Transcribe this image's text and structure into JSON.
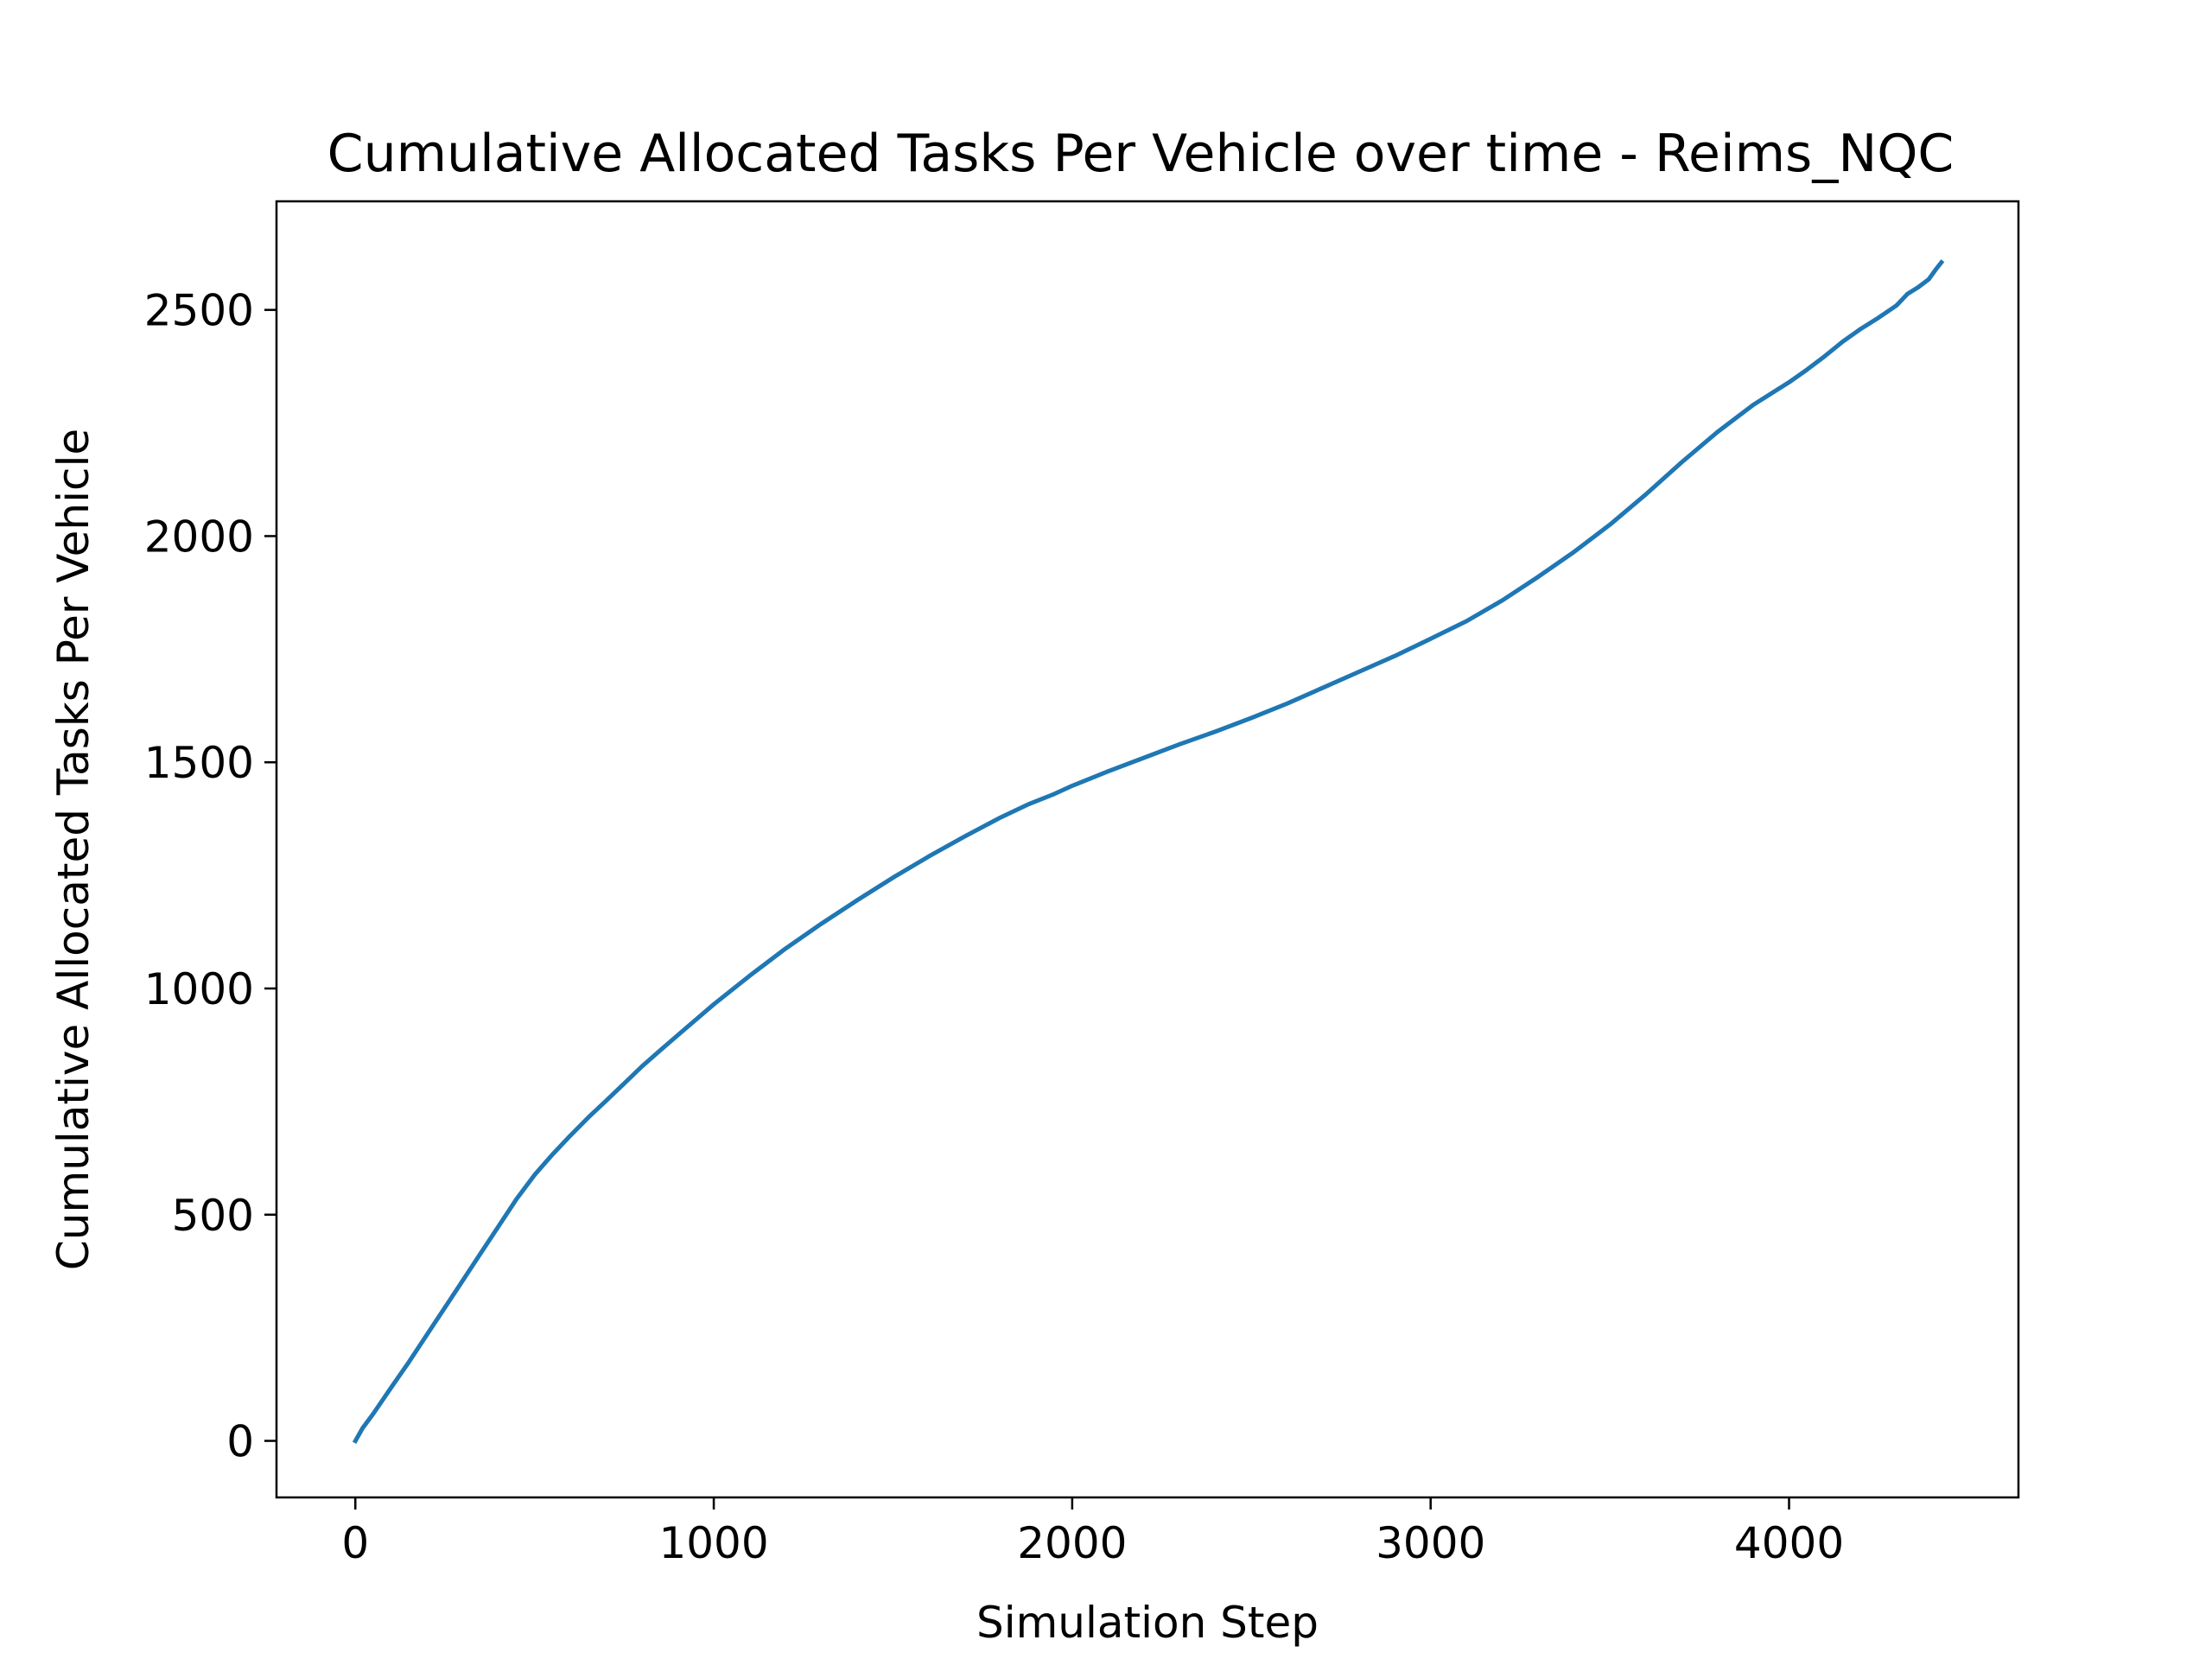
{
  "colors": {
    "background": "#ffffff",
    "line": "#1f77b4",
    "axes": "#000000"
  },
  "chart_data": {
    "type": "line",
    "title": "Cumulative Allocated Tasks Per Vehicle over time - Reims_NQC",
    "xlabel": "Simulation Step",
    "ylabel": "Cumulative Allocated Tasks Per Vehicle",
    "xlim": [
      -220,
      4640
    ],
    "ylim": [
      -125,
      2740
    ],
    "xticks": [
      0,
      1000,
      2000,
      3000,
      4000
    ],
    "xtick_labels": [
      "0",
      "1000",
      "2000",
      "3000",
      "4000"
    ],
    "yticks": [
      0,
      500,
      1000,
      1500,
      2000,
      2500
    ],
    "ytick_labels": [
      "0",
      "500",
      "1000",
      "1500",
      "2000",
      "2500"
    ],
    "grid": false,
    "legend": "none",
    "series": [
      {
        "color": "#1f77b4",
        "x": [
          0,
          20,
          50,
          100,
          150,
          200,
          250,
          300,
          350,
          400,
          450,
          500,
          550,
          600,
          650,
          700,
          750,
          800,
          850,
          900,
          1000,
          1100,
          1200,
          1300,
          1400,
          1500,
          1600,
          1700,
          1800,
          1880,
          1950,
          2000,
          2100,
          2200,
          2300,
          2400,
          2500,
          2600,
          2700,
          2800,
          2900,
          3000,
          3100,
          3200,
          3300,
          3400,
          3500,
          3600,
          3700,
          3800,
          3900,
          4000,
          4050,
          4100,
          4150,
          4200,
          4250,
          4300,
          4330,
          4360,
          4390,
          4410,
          4425
        ],
        "y": [
          0,
          28,
          60,
          118,
          175,
          235,
          295,
          355,
          415,
          475,
          535,
          588,
          633,
          675,
          715,
          752,
          790,
          828,
          863,
          897,
          965,
          1028,
          1088,
          1143,
          1195,
          1245,
          1292,
          1336,
          1378,
          1408,
          1430,
          1448,
          1480,
          1510,
          1540,
          1568,
          1598,
          1630,
          1665,
          1700,
          1735,
          1773,
          1812,
          1858,
          1910,
          1965,
          2025,
          2092,
          2163,
          2230,
          2290,
          2340,
          2368,
          2398,
          2430,
          2458,
          2483,
          2510,
          2535,
          2550,
          2568,
          2590,
          2605
        ]
      }
    ]
  }
}
